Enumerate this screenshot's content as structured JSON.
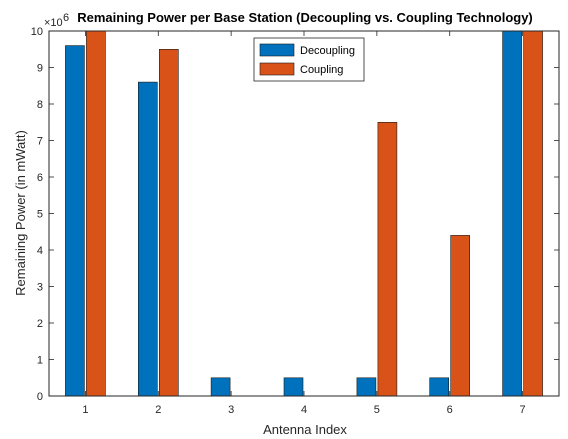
{
  "colors": {
    "decoupling": "#0072BD",
    "coupling": "#D95319",
    "axis": "#262626"
  },
  "chart_data": {
    "type": "bar",
    "title": "Remaining Power per Base Station (Decoupling vs. Coupling Technology)",
    "xlabel": "Antenna Index",
    "ylabel": "Remaining Power (in mWatt)",
    "y_exponent_base": "×10",
    "y_exponent_power": "6",
    "y_multiplier": 1000000,
    "categories": [
      "1",
      "2",
      "3",
      "4",
      "5",
      "6",
      "7"
    ],
    "yticks": [
      "0",
      "1",
      "2",
      "3",
      "4",
      "5",
      "6",
      "7",
      "8",
      "9",
      "10"
    ],
    "ylim": [
      0,
      10
    ],
    "grid": false,
    "legend_position": "top-center",
    "series": [
      {
        "name": "Decoupling",
        "values": [
          9.6,
          8.6,
          0.5,
          0.5,
          0.5,
          0.5,
          10.0
        ]
      },
      {
        "name": "Coupling",
        "values": [
          10.0,
          9.5,
          0,
          0,
          7.5,
          4.4,
          10.0
        ]
      }
    ]
  }
}
